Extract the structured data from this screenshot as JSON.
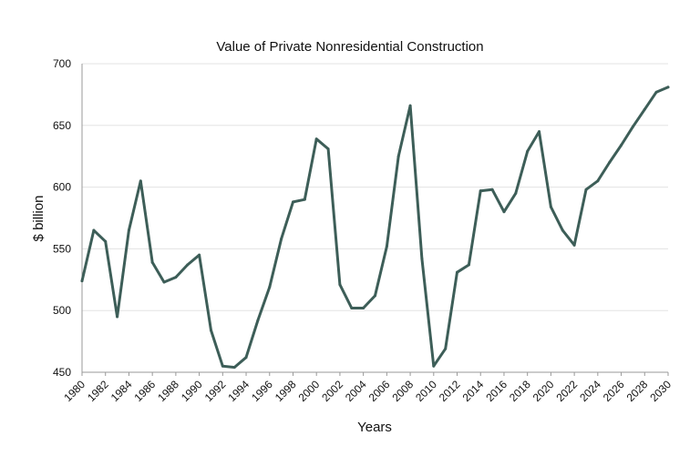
{
  "chart_data": {
    "type": "line",
    "title": "Value of Private Nonresidential Construction",
    "xlabel": "Years",
    "ylabel": "$ billion",
    "xlim": [
      1980,
      2030
    ],
    "ylim": [
      450,
      700
    ],
    "x_ticks": [
      "1980",
      "1982",
      "1984",
      "1986",
      "1988",
      "1990",
      "1992",
      "1994",
      "1996",
      "1998",
      "2000",
      "2002",
      "2004",
      "2006",
      "2008",
      "2010",
      "2012",
      "2014",
      "2016",
      "2018",
      "2020",
      "2022",
      "2024",
      "2026",
      "2028",
      "2030"
    ],
    "y_ticks": [
      "450",
      "500",
      "550",
      "600",
      "650",
      "700"
    ],
    "grid": "horizontal",
    "legend": "none",
    "colors": {
      "series": "#3d5e58",
      "grid": "#e3e3e3",
      "axis": "#999999"
    },
    "series": [
      {
        "x": [
          1980,
          1981,
          1982,
          1983,
          1984,
          1985,
          1986,
          1987,
          1988,
          1989,
          1990,
          1991,
          1992,
          1993,
          1994,
          1995,
          1996,
          1997,
          1998,
          1999,
          2000,
          2001,
          2002,
          2003,
          2004,
          2005,
          2006,
          2007,
          2008,
          2009,
          2010,
          2011,
          2012,
          2013,
          2014,
          2015,
          2016,
          2017,
          2018,
          2019,
          2020,
          2021,
          2022,
          2023,
          2024,
          2025,
          2026,
          2027,
          2028,
          2029,
          2030
        ],
        "values": [
          524,
          565,
          556,
          495,
          565,
          605,
          539,
          523,
          527,
          537,
          545,
          484,
          455,
          454,
          462,
          492,
          519,
          558,
          588,
          590,
          639,
          631,
          521,
          502,
          502,
          512,
          552,
          625,
          666,
          542,
          455,
          469,
          531,
          537,
          597,
          598,
          580,
          595,
          629,
          645,
          584,
          565,
          553,
          598,
          605,
          620,
          634,
          649,
          663,
          677,
          681
        ]
      }
    ]
  }
}
